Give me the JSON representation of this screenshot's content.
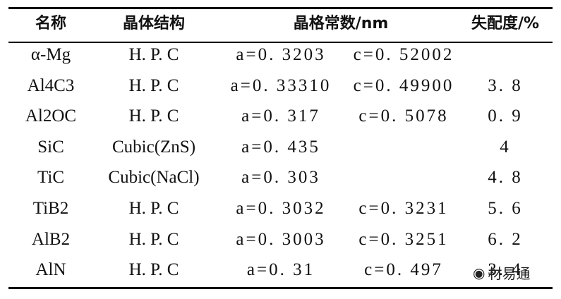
{
  "table": {
    "headers": [
      "名称",
      "晶体结构",
      "晶格常数/nm",
      "失配度/%"
    ],
    "rows": [
      {
        "name": "α-Mg",
        "structure": "H. P. C",
        "a": "a=0. 3203",
        "c": "c=0. 52002",
        "mismatch": ""
      },
      {
        "name": "Al4C3",
        "structure": "H. P. C",
        "a": "a=0. 33310",
        "c": "c=0. 49900",
        "mismatch": "3. 8"
      },
      {
        "name": "Al2OC",
        "structure": "H. P. C",
        "a": "a=0. 317",
        "c": "c=0. 5078",
        "mismatch": "0. 9"
      },
      {
        "name": "SiC",
        "structure": "Cubic(ZnS)",
        "a": "a=0. 435",
        "c": "",
        "mismatch": "4"
      },
      {
        "name": "TiC",
        "structure": "Cubic(NaCl)",
        "a": "a=0. 303",
        "c": "",
        "mismatch": "4. 8"
      },
      {
        "name": "TiB2",
        "structure": "H. P. C",
        "a": "a=0. 3032",
        "c": "c=0. 3231",
        "mismatch": "5. 6"
      },
      {
        "name": "AlB2",
        "structure": "H. P. C",
        "a": "a=0. 3003",
        "c": "c=0. 3251",
        "mismatch": "6. 2"
      },
      {
        "name": "AlN",
        "structure": "H. P. C",
        "a": "a=0. 31",
        "c": "c=0. 497",
        "mismatch": "3. 4"
      }
    ]
  },
  "watermark": {
    "text": "材易通",
    "icon": "wechat-icon"
  }
}
